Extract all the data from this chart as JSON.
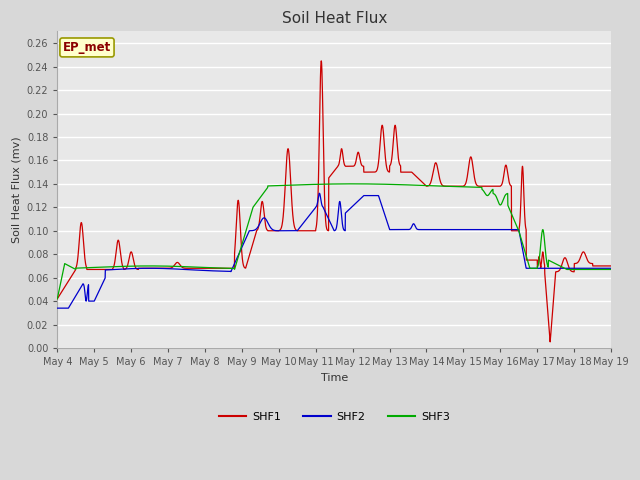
{
  "title": "Soil Heat Flux",
  "xlabel": "Time",
  "ylabel": "Soil Heat Flux (mv)",
  "ylim": [
    0.0,
    0.27
  ],
  "yticks": [
    0.0,
    0.02,
    0.04,
    0.06,
    0.08,
    0.1,
    0.12,
    0.14,
    0.16,
    0.18,
    0.2,
    0.22,
    0.24,
    0.26
  ],
  "annotation_text": "EP_met",
  "annotation_color": "#8B0000",
  "annotation_bg": "#FFFFCC",
  "annotation_border": "#999900",
  "shf1_color": "#CC0000",
  "shf2_color": "#0000CC",
  "shf3_color": "#00AA00",
  "bg_color": "#D8D8D8",
  "plot_bg": "#E8E8E8",
  "grid_color": "#FFFFFF",
  "legend_labels": [
    "SHF1",
    "SHF2",
    "SHF3"
  ],
  "figsize": [
    6.4,
    4.8
  ],
  "dpi": 100,
  "title_fontsize": 11,
  "label_fontsize": 8,
  "tick_fontsize": 7,
  "legend_fontsize": 8
}
